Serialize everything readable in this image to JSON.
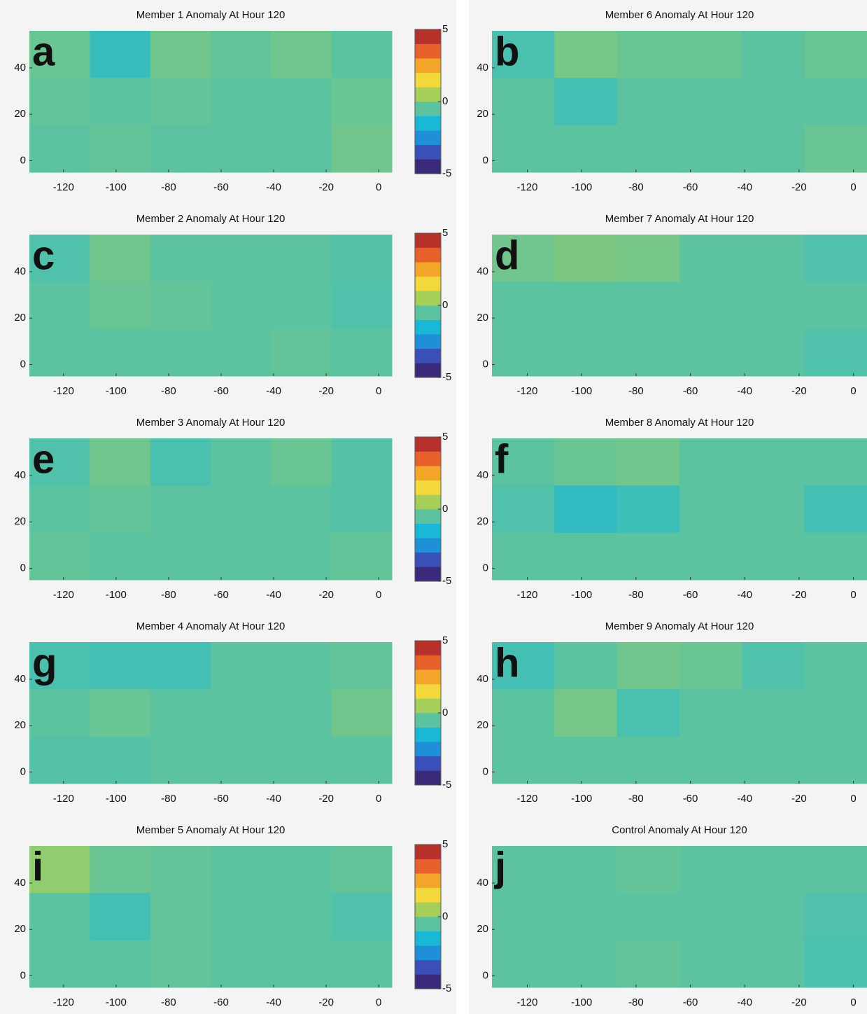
{
  "chart_data": [
    {
      "type": "heatmap",
      "title": "Member 1 Anomaly At Hour 120",
      "label": "a",
      "xlim": [
        -133,
        5
      ],
      "ylim": [
        -5,
        56
      ],
      "xticks": [
        -120,
        -100,
        -80,
        -60,
        -40,
        -20,
        0
      ],
      "yticks": [
        0,
        20,
        40
      ],
      "z": [
        [
          0.2,
          -0.6,
          0.3,
          0.1,
          0.3,
          0.0
        ],
        [
          0.1,
          0.0,
          0.1,
          0.0,
          0.0,
          0.2
        ],
        [
          0.0,
          0.1,
          0.0,
          0.0,
          0.0,
          0.3
        ]
      ],
      "clim": [
        -5,
        5
      ],
      "cticks": [
        -5,
        0,
        5
      ],
      "colormap": [
        "#3b2a7a",
        "#3a4fb8",
        "#1f8fd8",
        "#19b8d6",
        "#5cc3a0",
        "#a6cf5a",
        "#f2d83a",
        "#f4a62a",
        "#e8602a",
        "#b8302a"
      ]
    },
    {
      "type": "heatmap",
      "title": "Member 2 Anomaly At Hour 120",
      "label": "c",
      "xlim": [
        -133,
        5
      ],
      "ylim": [
        -5,
        56
      ],
      "xticks": [
        -120,
        -100,
        -80,
        -60,
        -40,
        -20,
        0
      ],
      "yticks": [
        0,
        20,
        40
      ],
      "z": [
        [
          -0.2,
          0.3,
          0.0,
          0.0,
          0.0,
          -0.1
        ],
        [
          0.0,
          0.2,
          0.1,
          0.0,
          0.0,
          -0.2
        ],
        [
          0.0,
          0.0,
          0.0,
          0.0,
          0.1,
          0.0
        ]
      ],
      "clim": [
        -5,
        5
      ],
      "cticks": [
        -5,
        0,
        5
      ],
      "colormap": [
        "#3b2a7a",
        "#3a4fb8",
        "#1f8fd8",
        "#19b8d6",
        "#5cc3a0",
        "#a6cf5a",
        "#f2d83a",
        "#f4a62a",
        "#e8602a",
        "#b8302a"
      ]
    },
    {
      "type": "heatmap",
      "title": "Member 3 Anomaly At Hour 120",
      "label": "e",
      "xlim": [
        -133,
        5
      ],
      "ylim": [
        -5,
        56
      ],
      "xticks": [
        -120,
        -100,
        -80,
        -60,
        -40,
        -20,
        0
      ],
      "yticks": [
        0,
        20,
        40
      ],
      "z": [
        [
          -0.2,
          0.3,
          -0.3,
          0.0,
          0.2,
          -0.1
        ],
        [
          0.0,
          0.1,
          0.0,
          0.0,
          0.0,
          -0.1
        ],
        [
          0.1,
          0.0,
          0.0,
          0.0,
          0.0,
          0.1
        ]
      ],
      "clim": [
        -5,
        5
      ],
      "cticks": [
        -5,
        0,
        5
      ],
      "colormap": [
        "#3b2a7a",
        "#3a4fb8",
        "#1f8fd8",
        "#19b8d6",
        "#5cc3a0",
        "#a6cf5a",
        "#f2d83a",
        "#f4a62a",
        "#e8602a",
        "#b8302a"
      ]
    },
    {
      "type": "heatmap",
      "title": "Member 4 Anomaly At Hour 120",
      "label": "g",
      "xlim": [
        -133,
        5
      ],
      "ylim": [
        -5,
        56
      ],
      "xticks": [
        -120,
        -100,
        -80,
        -60,
        -40,
        -20,
        0
      ],
      "yticks": [
        0,
        20,
        40
      ],
      "z": [
        [
          -0.3,
          -0.4,
          -0.4,
          0.0,
          0.0,
          0.1
        ],
        [
          0.0,
          0.2,
          0.0,
          0.0,
          0.0,
          0.3
        ],
        [
          -0.1,
          -0.1,
          0.0,
          0.0,
          0.0,
          0.0
        ]
      ],
      "clim": [
        -5,
        5
      ],
      "cticks": [
        -5,
        0,
        5
      ],
      "colormap": [
        "#3b2a7a",
        "#3a4fb8",
        "#1f8fd8",
        "#19b8d6",
        "#5cc3a0",
        "#a6cf5a",
        "#f2d83a",
        "#f4a62a",
        "#e8602a",
        "#b8302a"
      ]
    },
    {
      "type": "heatmap",
      "title": "Member 5 Anomaly At Hour 120",
      "label": "i",
      "xlim": [
        -133,
        5
      ],
      "ylim": [
        -5,
        56
      ],
      "xticks": [
        -120,
        -100,
        -80,
        -60,
        -40,
        -20,
        0
      ],
      "yticks": [
        0,
        20,
        40
      ],
      "z": [
        [
          0.8,
          0.2,
          0.1,
          0.0,
          0.0,
          0.1
        ],
        [
          0.0,
          -0.4,
          0.1,
          0.0,
          0.0,
          -0.2
        ],
        [
          0.0,
          0.0,
          0.1,
          0.0,
          0.0,
          0.0
        ]
      ],
      "clim": [
        -5,
        5
      ],
      "cticks": [
        -5,
        0,
        5
      ],
      "colormap": [
        "#3b2a7a",
        "#3a4fb8",
        "#1f8fd8",
        "#19b8d6",
        "#5cc3a0",
        "#a6cf5a",
        "#f2d83a",
        "#f4a62a",
        "#e8602a",
        "#b8302a"
      ]
    },
    {
      "type": "heatmap",
      "title": "Member 6 Anomaly At Hour 120",
      "label": "b",
      "xlim": [
        -133,
        5
      ],
      "ylim": [
        -5,
        56
      ],
      "xticks": [
        -120,
        -100,
        -80,
        -60,
        -40,
        -20,
        0
      ],
      "yticks": [
        0,
        20,
        40
      ],
      "z": [
        [
          -0.3,
          0.4,
          0.2,
          0.2,
          0.0,
          0.2
        ],
        [
          0.0,
          -0.4,
          0.0,
          0.0,
          0.0,
          0.0
        ],
        [
          0.0,
          0.0,
          0.0,
          0.0,
          0.0,
          0.2
        ]
      ],
      "colormap": [
        "#3b2a7a",
        "#3a4fb8",
        "#1f8fd8",
        "#19b8d6",
        "#5cc3a0",
        "#a6cf5a",
        "#f2d83a",
        "#f4a62a",
        "#e8602a",
        "#b8302a"
      ]
    },
    {
      "type": "heatmap",
      "title": "Member 7 Anomaly At Hour 120",
      "label": "d",
      "xlim": [
        -133,
        5
      ],
      "ylim": [
        -5,
        56
      ],
      "xticks": [
        -120,
        -100,
        -80,
        -60,
        -40,
        -20,
        0
      ],
      "yticks": [
        0,
        20,
        40
      ],
      "z": [
        [
          0.3,
          0.5,
          0.4,
          0.0,
          0.0,
          -0.2
        ],
        [
          0.0,
          0.0,
          0.0,
          0.0,
          0.0,
          0.0
        ],
        [
          0.0,
          0.0,
          0.0,
          0.0,
          0.0,
          -0.2
        ]
      ],
      "colormap": [
        "#3b2a7a",
        "#3a4fb8",
        "#1f8fd8",
        "#19b8d6",
        "#5cc3a0",
        "#a6cf5a",
        "#f2d83a",
        "#f4a62a",
        "#e8602a",
        "#b8302a"
      ]
    },
    {
      "type": "heatmap",
      "title": "Member 8 Anomaly At Hour 120",
      "label": "f",
      "xlim": [
        -133,
        5
      ],
      "ylim": [
        -5,
        56
      ],
      "xticks": [
        -120,
        -100,
        -80,
        -60,
        -40,
        -20,
        0
      ],
      "yticks": [
        0,
        20,
        40
      ],
      "z": [
        [
          0.0,
          0.2,
          0.3,
          0.0,
          0.0,
          0.0
        ],
        [
          -0.2,
          -0.7,
          -0.5,
          0.0,
          0.0,
          -0.4
        ],
        [
          0.0,
          0.0,
          0.0,
          0.0,
          0.0,
          0.0
        ]
      ],
      "colormap": [
        "#3b2a7a",
        "#3a4fb8",
        "#1f8fd8",
        "#19b8d6",
        "#5cc3a0",
        "#a6cf5a",
        "#f2d83a",
        "#f4a62a",
        "#e8602a",
        "#b8302a"
      ]
    },
    {
      "type": "heatmap",
      "title": "Member 9 Anomaly At Hour 120",
      "label": "h",
      "xlim": [
        -133,
        5
      ],
      "ylim": [
        -5,
        56
      ],
      "xticks": [
        -120,
        -100,
        -80,
        -60,
        -40,
        -20,
        0
      ],
      "yticks": [
        0,
        20,
        40
      ],
      "z": [
        [
          -0.4,
          0.0,
          0.3,
          0.2,
          -0.2,
          0.0
        ],
        [
          0.0,
          0.4,
          -0.3,
          0.0,
          0.0,
          0.0
        ],
        [
          0.0,
          0.0,
          0.0,
          0.0,
          0.0,
          0.0
        ]
      ],
      "colormap": [
        "#3b2a7a",
        "#3a4fb8",
        "#1f8fd8",
        "#19b8d6",
        "#5cc3a0",
        "#a6cf5a",
        "#f2d83a",
        "#f4a62a",
        "#e8602a",
        "#b8302a"
      ]
    },
    {
      "type": "heatmap",
      "title": "Control Anomaly At Hour 120",
      "label": "j",
      "xlim": [
        -133,
        5
      ],
      "ylim": [
        -5,
        56
      ],
      "xticks": [
        -120,
        -100,
        -80,
        -60,
        -40,
        -20,
        0
      ],
      "yticks": [
        0,
        20,
        40
      ],
      "z": [
        [
          0.0,
          0.0,
          0.1,
          0.0,
          0.0,
          0.0
        ],
        [
          0.0,
          0.0,
          0.0,
          0.0,
          0.0,
          -0.2
        ],
        [
          0.0,
          0.0,
          0.1,
          0.0,
          0.0,
          -0.3
        ]
      ],
      "colormap": [
        "#3b2a7a",
        "#3a4fb8",
        "#1f8fd8",
        "#19b8d6",
        "#5cc3a0",
        "#a6cf5a",
        "#f2d83a",
        "#f4a62a",
        "#e8602a",
        "#b8302a"
      ]
    }
  ]
}
